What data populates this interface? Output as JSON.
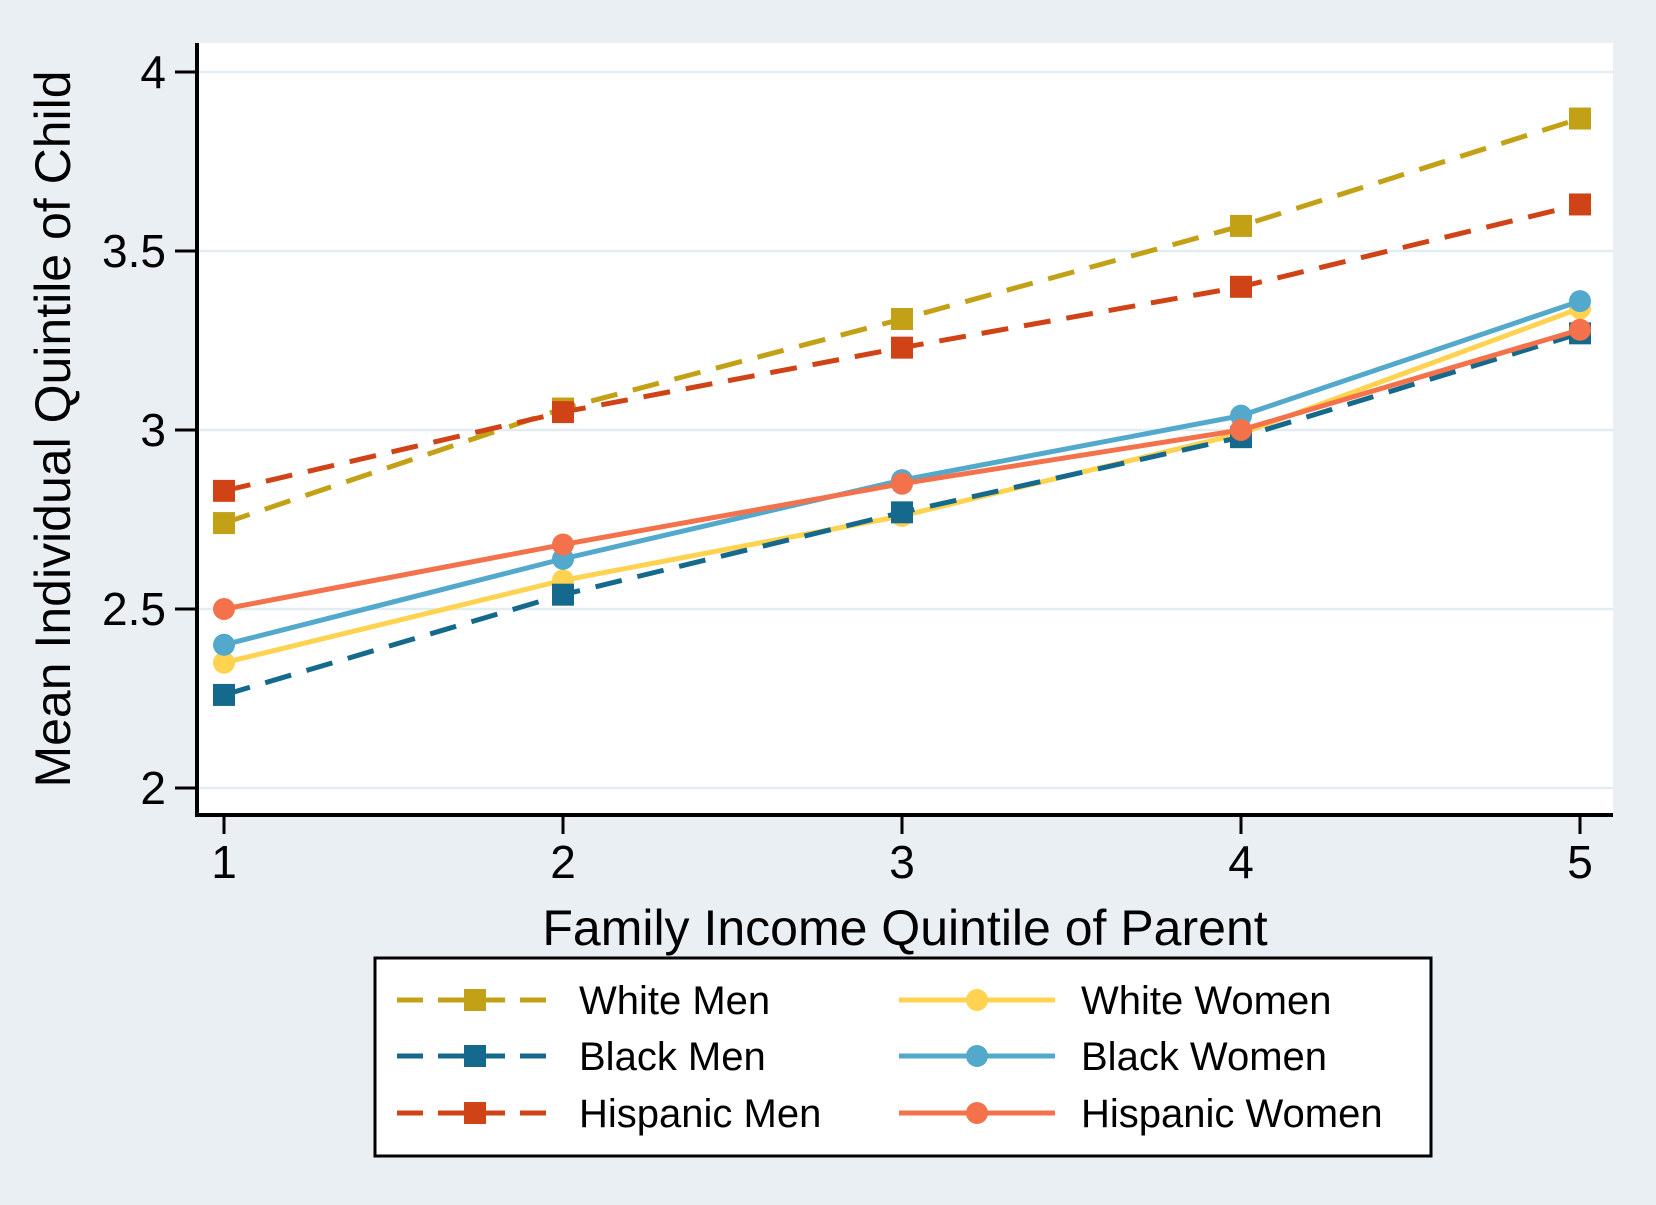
{
  "figure": {
    "background_color": "#E9EFF3",
    "plot_background": "#FFFFFF",
    "grid_color": "#E2EDF1",
    "axis_color": "#000000",
    "legend_background": "#FFFFFF",
    "legend_border_color": "#000000"
  },
  "chart_data": {
    "type": "line",
    "title": "",
    "xlabel": "Family Income Quintile of Parent",
    "ylabel": "Mean Individual Quintile of Child",
    "x": [
      1,
      2,
      3,
      4,
      5
    ],
    "xticks": [
      1,
      2,
      3,
      4,
      5
    ],
    "yticks": [
      2,
      2.5,
      3,
      3.5,
      4
    ],
    "xlim": [
      0.92,
      5.1
    ],
    "ylim": [
      1.92,
      4.08
    ],
    "grid": true,
    "legend_position": "bottom",
    "legend_columns": 2,
    "series": [
      {
        "name": "White Men",
        "color": "#C3A117",
        "line_style": "dashed",
        "marker": "square",
        "values": [
          2.74,
          3.06,
          3.31,
          3.57,
          3.87
        ]
      },
      {
        "name": "Black Men",
        "color": "#15698C",
        "line_style": "dashed",
        "marker": "square",
        "values": [
          2.26,
          2.54,
          2.77,
          2.98,
          3.27
        ]
      },
      {
        "name": "Hispanic Men",
        "color": "#D04317",
        "line_style": "dashed",
        "marker": "square",
        "values": [
          2.83,
          3.05,
          3.23,
          3.4,
          3.63
        ]
      },
      {
        "name": "White Women",
        "color": "#FFD34F",
        "line_style": "solid",
        "marker": "circle",
        "values": [
          2.35,
          2.58,
          2.76,
          2.99,
          3.34
        ]
      },
      {
        "name": "Black Women",
        "color": "#52A9CC",
        "line_style": "solid",
        "marker": "circle",
        "values": [
          2.4,
          2.64,
          2.86,
          3.04,
          3.36
        ]
      },
      {
        "name": "Hispanic Women",
        "color": "#F3714B",
        "line_style": "solid",
        "marker": "circle",
        "values": [
          2.5,
          2.68,
          2.85,
          3.0,
          3.28
        ]
      }
    ],
    "draw_order": [
      "White Men",
      "White Women",
      "Black Men",
      "Black Women",
      "Hispanic Men",
      "Hispanic Women"
    ],
    "legend": {
      "left_column": [
        "White Men",
        "Black Men",
        "Hispanic Men"
      ],
      "right_column": [
        "White Women",
        "Black Women",
        "Hispanic Women"
      ]
    }
  }
}
